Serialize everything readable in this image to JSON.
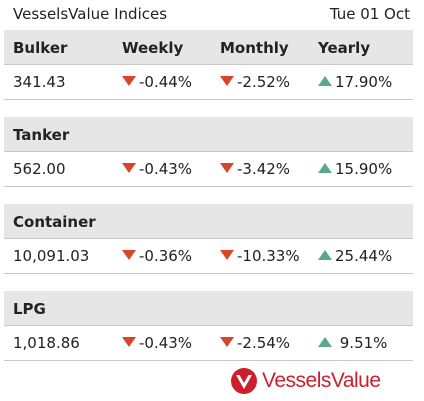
{
  "header": {
    "title": "VesselsValue Indices",
    "date": "Tue 01 Oct"
  },
  "columns": {
    "weekly": "Weekly",
    "monthly": "Monthly",
    "yearly": "Yearly"
  },
  "indices": [
    {
      "name": "Bulker",
      "value": "341.43",
      "weekly": {
        "text": "-0.44%",
        "dir": "down"
      },
      "monthly": {
        "text": "-2.52%",
        "dir": "down"
      },
      "yearly": {
        "text": "17.90%",
        "dir": "up"
      }
    },
    {
      "name": "Tanker",
      "value": "562.00",
      "weekly": {
        "text": "-0.43%",
        "dir": "down"
      },
      "monthly": {
        "text": "-3.42%",
        "dir": "down"
      },
      "yearly": {
        "text": "15.90%",
        "dir": "up"
      }
    },
    {
      "name": "Container",
      "value": "10,091.03",
      "weekly": {
        "text": "-0.36%",
        "dir": "down"
      },
      "monthly": {
        "text": "-10.33%",
        "dir": "down"
      },
      "yearly": {
        "text": "25.44%",
        "dir": "up"
      }
    },
    {
      "name": "LPG",
      "value": "1,018.86",
      "weekly": {
        "text": "-0.43%",
        "dir": "down"
      },
      "monthly": {
        "text": "-2.54%",
        "dir": "down"
      },
      "yearly": {
        "text": " 9.51%",
        "dir": "up"
      }
    }
  ],
  "colors": {
    "down": "#d9442b",
    "up": "#5aa987",
    "brand": "#cc1f2c",
    "header_bg": "#e6e6e6"
  },
  "logo": {
    "text": "VesselsValue",
    "icon": "vesselsvalue-logo-icon"
  }
}
